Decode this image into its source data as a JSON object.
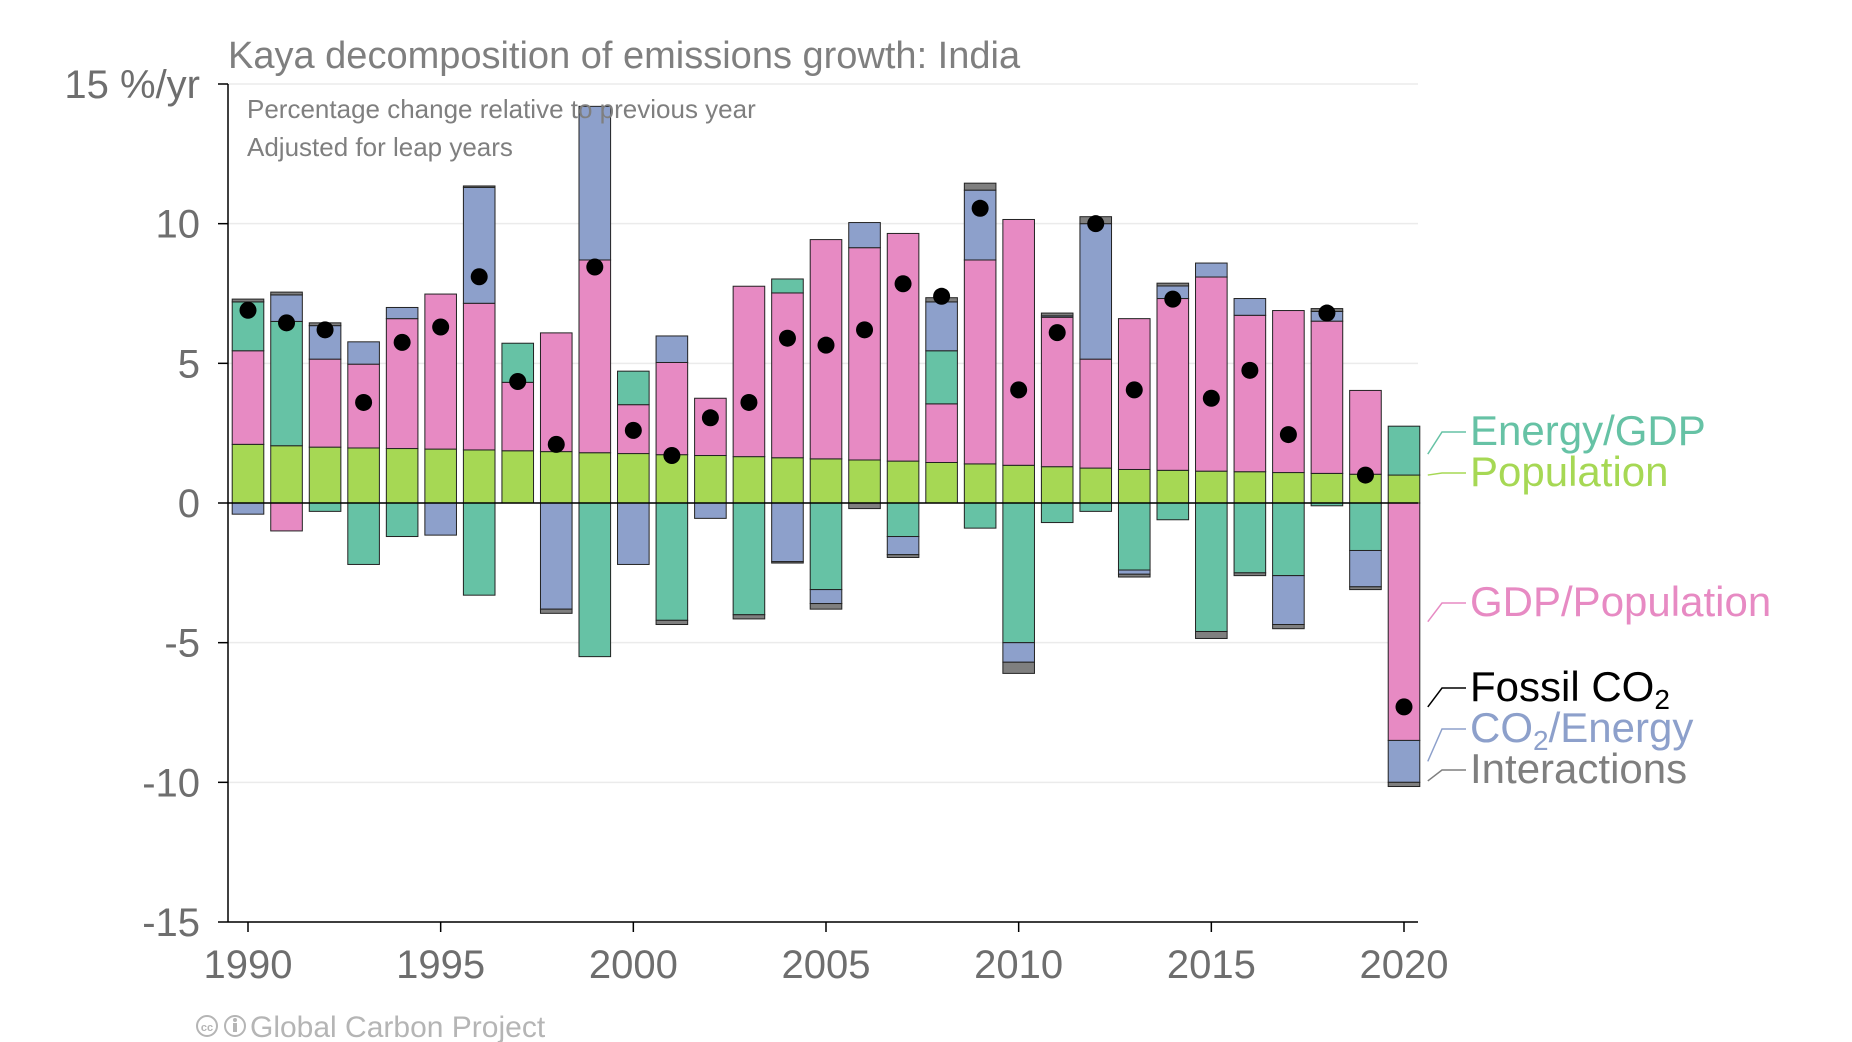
{
  "chart_data": {
    "type": "bar",
    "title": "Kaya decomposition of emissions growth: India",
    "subtitle_lines": [
      "Percentage change relative to previous year",
      "Adjusted for leap years"
    ],
    "credit": "Global Carbon Project",
    "y_unit_label": "15 %/yr",
    "ylim": [
      -15,
      15
    ],
    "yticks": [
      15,
      10,
      5,
      0,
      -5,
      -10,
      -15
    ],
    "ytick_labels": [
      "15 %/yr",
      "10",
      "5",
      "0",
      "-5",
      "-10",
      "-15"
    ],
    "xticks": [
      1990,
      1995,
      2000,
      2005,
      2010,
      2015,
      2020
    ],
    "grid": true,
    "legend_position": "right",
    "colors": {
      "Energy/GDP": "#66c2a5",
      "Population": "#a6d854",
      "GDP/Population": "#e78ac3",
      "Fossil CO2": "#000000",
      "CO2/Energy": "#8da0cb",
      "Interactions": "#7f7f7f"
    },
    "years": [
      1990,
      1991,
      1992,
      1993,
      1994,
      1995,
      1996,
      1997,
      1998,
      1999,
      2000,
      2001,
      2002,
      2003,
      2004,
      2005,
      2006,
      2007,
      2008,
      2009,
      2010,
      2011,
      2012,
      2013,
      2014,
      2015,
      2016,
      2017,
      2018,
      2019,
      2020
    ],
    "series": [
      {
        "name": "Population",
        "values": [
          2.1,
          2.05,
          2.0,
          1.97,
          1.95,
          1.93,
          1.9,
          1.87,
          1.84,
          1.8,
          1.77,
          1.73,
          1.7,
          1.66,
          1.62,
          1.58,
          1.54,
          1.5,
          1.45,
          1.4,
          1.35,
          1.3,
          1.25,
          1.2,
          1.17,
          1.14,
          1.12,
          1.09,
          1.06,
          1.03,
          1.0
        ]
      },
      {
        "name": "GDP/Population",
        "values": [
          3.35,
          -1.0,
          3.15,
          3.0,
          4.65,
          5.55,
          5.25,
          2.45,
          4.25,
          6.9,
          1.75,
          3.3,
          2.05,
          6.1,
          5.9,
          7.85,
          7.6,
          8.15,
          2.1,
          7.3,
          8.8,
          5.35,
          3.9,
          5.4,
          6.15,
          6.95,
          5.6,
          5.8,
          5.45,
          3.0,
          -8.5
        ]
      },
      {
        "name": "Energy/GDP",
        "values": [
          1.75,
          4.45,
          -0.3,
          -2.2,
          -1.2,
          0.0,
          -3.3,
          1.4,
          0.0,
          -5.5,
          1.2,
          -4.2,
          0.0,
          -4.0,
          0.5,
          -3.1,
          0.0,
          -1.2,
          1.9,
          -0.9,
          -5.0,
          -0.7,
          -0.3,
          -2.4,
          -0.6,
          -4.6,
          -2.5,
          -2.6,
          -0.1,
          -1.7,
          1.75
        ]
      },
      {
        "name": "CO2/Energy",
        "values": [
          -0.4,
          0.95,
          1.2,
          0.8,
          0.4,
          -1.15,
          4.15,
          0.0,
          -3.8,
          5.5,
          -2.2,
          0.95,
          -0.55,
          0.0,
          -2.1,
          -0.5,
          0.9,
          -0.65,
          1.75,
          2.5,
          -0.7,
          0.05,
          4.85,
          -0.15,
          0.45,
          0.5,
          0.6,
          -1.75,
          0.35,
          -1.3,
          -1.5
        ]
      },
      {
        "name": "Interactions",
        "values": [
          0.1,
          0.1,
          0.1,
          0.0,
          0.0,
          0.0,
          0.05,
          0.0,
          -0.15,
          0.0,
          0.0,
          -0.15,
          0.0,
          -0.15,
          -0.05,
          -0.2,
          -0.2,
          -0.1,
          0.15,
          0.25,
          -0.4,
          0.1,
          0.25,
          -0.1,
          0.1,
          -0.25,
          -0.1,
          -0.15,
          0.1,
          -0.1,
          -0.15
        ]
      }
    ],
    "fossil_co2": {
      "name": "Fossil CO2",
      "values": [
        6.9,
        6.45,
        6.2,
        3.6,
        5.75,
        6.3,
        8.1,
        4.35,
        2.1,
        8.45,
        2.6,
        1.7,
        3.05,
        3.6,
        5.9,
        5.65,
        6.2,
        7.85,
        7.4,
        10.55,
        4.05,
        6.1,
        10.0,
        4.05,
        7.3,
        3.75,
        4.75,
        2.45,
        6.8,
        1.0,
        -7.3
      ]
    },
    "legend": [
      {
        "key": "Energy/GDP",
        "label": "Energy/GDP",
        "value": 1.75
      },
      {
        "key": "Population",
        "label": "Population",
        "value": 1.0
      },
      {
        "key": "GDP/Population",
        "label": "GDP/Population",
        "value": -4.25
      },
      {
        "key": "Fossil CO2",
        "label": "Fossil CO",
        "sub": "2",
        "label_after": "",
        "value": -7.3
      },
      {
        "key": "CO2/Energy",
        "label": "CO",
        "sub": "2",
        "label_after": "/Energy",
        "value": -9.25
      },
      {
        "key": "Interactions",
        "label": "Interactions",
        "value": -9.95
      }
    ]
  }
}
